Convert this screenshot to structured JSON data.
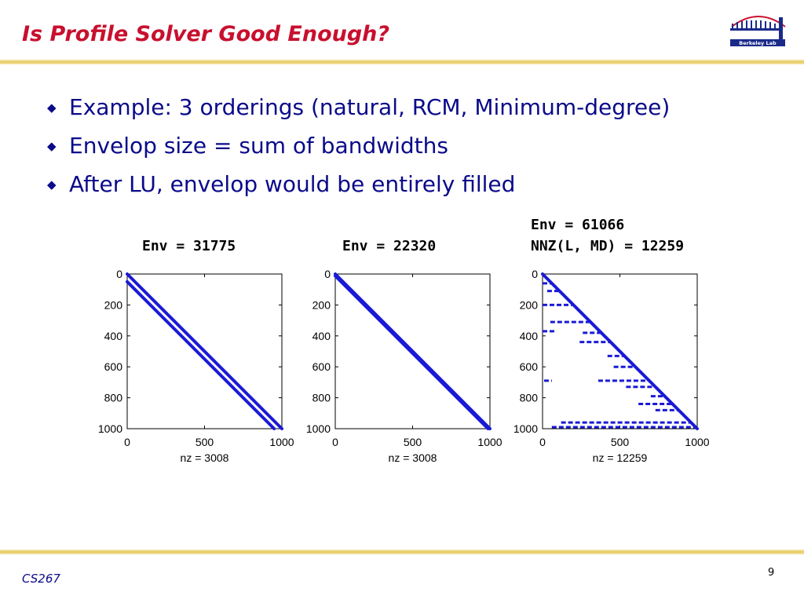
{
  "slide": {
    "title": "Is Profile Solver Good Enough?",
    "logo_text": "Berkeley Lab",
    "bullets": [
      "Example: 3 orderings (natural, RCM, Minimum-degree)",
      "Envelop size = sum of bandwidths",
      "After LU, envelop would be entirely filled"
    ],
    "footer_left": "CS267",
    "page_number": "9"
  },
  "colors": {
    "title": "#c8102e",
    "bullet_text": "#0a0a8a",
    "markers": "#1a1ad6",
    "rule": "#e8c85a"
  },
  "plots": [
    {
      "env_label": "Env = 31775",
      "nz_label": "nz = 3008"
    },
    {
      "env_label": "Env = 22320",
      "nz_label": "nz = 3008"
    },
    {
      "env_label_line1": "Env = 61066",
      "env_label_line2": "NNZ(L, MD) = 12259",
      "nz_label": "nz = 12259"
    }
  ],
  "chart_data": [
    {
      "type": "scatter",
      "title": "Env = 31775",
      "xlabel": "nz = 3008",
      "xlim": [
        0,
        1000
      ],
      "ylim": [
        0,
        1000
      ],
      "y_inverted": true,
      "xticks": [
        "0",
        "500",
        "1000"
      ],
      "yticks": [
        "0",
        "200",
        "400",
        "600",
        "800",
        "1000"
      ],
      "bands": [
        {
          "from": [
            0,
            0
          ],
          "to": [
            1000,
            1000
          ]
        },
        {
          "from": [
            0,
            50
          ],
          "to": [
            950,
            1000
          ]
        }
      ]
    },
    {
      "type": "scatter",
      "title": "Env = 22320",
      "xlabel": "nz = 3008",
      "xlim": [
        0,
        1000
      ],
      "ylim": [
        0,
        1000
      ],
      "y_inverted": true,
      "xticks": [
        "0",
        "500",
        "1000"
      ],
      "yticks": [
        "0",
        "200",
        "400",
        "600",
        "800",
        "1000"
      ],
      "bands": [
        {
          "from": [
            0,
            0
          ],
          "to": [
            1000,
            1000
          ]
        },
        {
          "from": [
            0,
            12
          ],
          "to": [
            988,
            1000
          ]
        }
      ]
    },
    {
      "type": "scatter",
      "title": "Env = 61066 / NNZ(L, MD) = 12259",
      "xlabel": "nz = 12259",
      "xlim": [
        0,
        1000
      ],
      "ylim": [
        0,
        1000
      ],
      "y_inverted": true,
      "xticks": [
        "0",
        "500",
        "1000"
      ],
      "yticks": [
        "0",
        "200",
        "400",
        "600",
        "800",
        "1000"
      ],
      "bands": [
        {
          "from": [
            0,
            0
          ],
          "to": [
            1000,
            1000
          ]
        }
      ],
      "clusters": [
        {
          "row": 60,
          "x_from": 0,
          "x_to": 60
        },
        {
          "row": 110,
          "x_from": 30,
          "x_to": 110
        },
        {
          "row": 200,
          "x_from": 0,
          "x_to": 200
        },
        {
          "row": 310,
          "x_from": 50,
          "x_to": 310
        },
        {
          "row": 370,
          "x_from": 0,
          "x_to": 90
        },
        {
          "row": 380,
          "x_from": 260,
          "x_to": 380
        },
        {
          "row": 440,
          "x_from": 240,
          "x_to": 440
        },
        {
          "row": 530,
          "x_from": 420,
          "x_to": 530
        },
        {
          "row": 600,
          "x_from": 460,
          "x_to": 600
        },
        {
          "row": 690,
          "x_from": 10,
          "x_to": 60
        },
        {
          "row": 690,
          "x_from": 360,
          "x_to": 690
        },
        {
          "row": 730,
          "x_from": 540,
          "x_to": 730
        },
        {
          "row": 790,
          "x_from": 700,
          "x_to": 790
        },
        {
          "row": 840,
          "x_from": 620,
          "x_to": 840
        },
        {
          "row": 880,
          "x_from": 730,
          "x_to": 880
        },
        {
          "row": 960,
          "x_from": 120,
          "x_to": 960
        },
        {
          "row": 990,
          "x_from": 60,
          "x_to": 990
        }
      ]
    }
  ]
}
